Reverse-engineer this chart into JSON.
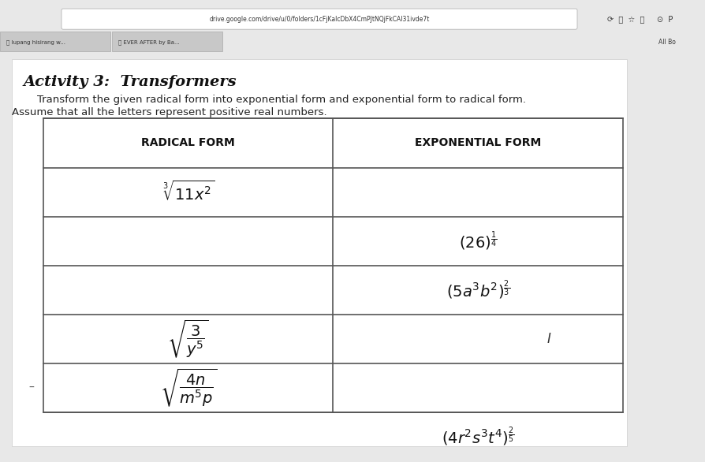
{
  "title": "Activity 3:  Transformers",
  "instruction_line1": "    Transform the given radical form into exponential form and exponential form to radical form.",
  "instruction_line2": "Assume that all the letters represent positive real numbers.",
  "col1_header": "RADICAL FORM",
  "col2_header": "EXPONENTIAL FORM",
  "bg_color": "#f0f0f0",
  "table_bg": "#ffffff",
  "browser_bar_color": "#e8e8e8",
  "tab_bar_color": "#d0d0d0",
  "url": "drive.google.com/drive/u/0/folders/1cFjKalcDbX4CmPJtNQjFkCAl31ivde7t",
  "tab1": "lupang hisirang w...",
  "tab2": "EVER AFTER by Ba...",
  "tab3": "All Bo"
}
